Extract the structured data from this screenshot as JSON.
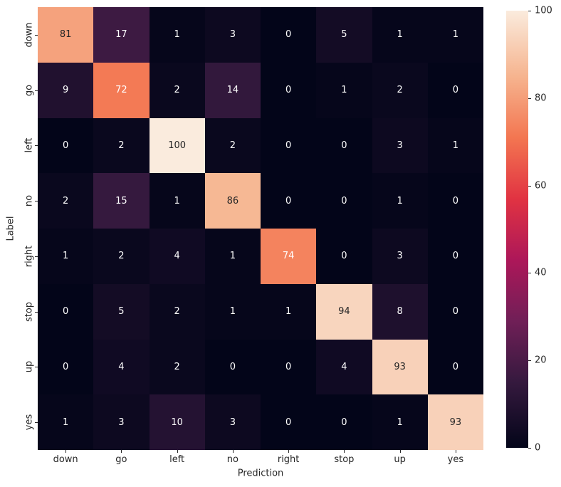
{
  "chart_data": {
    "type": "heatmap",
    "title": "",
    "xlabel": "Prediction",
    "ylabel": "Label",
    "x_categories": [
      "down",
      "go",
      "left",
      "no",
      "right",
      "stop",
      "up",
      "yes"
    ],
    "y_categories": [
      "down",
      "go",
      "left",
      "no",
      "right",
      "stop",
      "up",
      "yes"
    ],
    "matrix": [
      [
        81,
        17,
        1,
        3,
        0,
        5,
        1,
        1
      ],
      [
        9,
        72,
        2,
        14,
        0,
        1,
        2,
        0
      ],
      [
        0,
        2,
        100,
        2,
        0,
        0,
        3,
        1
      ],
      [
        2,
        15,
        1,
        86,
        0,
        0,
        1,
        0
      ],
      [
        1,
        2,
        4,
        1,
        74,
        0,
        3,
        0
      ],
      [
        0,
        5,
        2,
        1,
        1,
        94,
        8,
        0
      ],
      [
        0,
        4,
        2,
        0,
        0,
        4,
        93,
        0
      ],
      [
        1,
        3,
        10,
        3,
        0,
        0,
        1,
        93
      ]
    ],
    "vmin": 0,
    "vmax": 100,
    "colorbar_ticks": [
      0,
      20,
      40,
      60,
      80,
      100
    ],
    "colormap_name": "rocket",
    "colormap_stops": [
      {
        "pos": 0.0,
        "color": "#030519"
      },
      {
        "pos": 0.15,
        "color": "#35193e"
      },
      {
        "pos": 0.29,
        "color": "#701f57"
      },
      {
        "pos": 0.43,
        "color": "#ad1759"
      },
      {
        "pos": 0.57,
        "color": "#e13342"
      },
      {
        "pos": 0.71,
        "color": "#f37651"
      },
      {
        "pos": 0.85,
        "color": "#f6b48f"
      },
      {
        "pos": 1.0,
        "color": "#faebdd"
      }
    ],
    "annotation_colors": {
      "on_dark": "#ffffff",
      "on_light": "#262626"
    },
    "axis_text_color": "#262626",
    "background": "#ffffff"
  }
}
